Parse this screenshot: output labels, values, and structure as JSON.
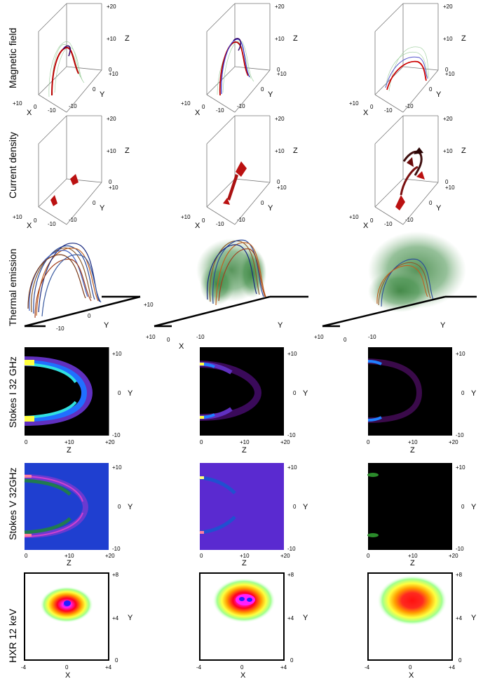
{
  "row_labels": [
    "Magnetic field",
    "Current density",
    "Thermal emission",
    "Stokes I 32 GHz",
    "Stokes V 32GHz",
    "HXR 12 keV"
  ],
  "box3d": {
    "z_ticks": [
      "+20",
      "+10",
      "0"
    ],
    "z_label": "Z",
    "y_ticks": [
      "+10",
      "0",
      "-10"
    ],
    "y_label": "Y",
    "x_ticks": [
      "+10",
      "0",
      "-10"
    ],
    "x_label": "X"
  },
  "thermal": {
    "y_ticks": [
      "+10",
      "0",
      "-10"
    ],
    "y_label": "Y",
    "x_ticks": [
      "+10",
      "0",
      "-10"
    ],
    "x_label": "X"
  },
  "radio": {
    "y_ticks": [
      "+10",
      "0",
      "-10"
    ],
    "y_label": "Y",
    "z_ticks": [
      "0",
      "+10",
      "+20"
    ],
    "z_label": "Z"
  },
  "hxr": {
    "y_ticks": [
      "+8",
      "+4",
      "0"
    ],
    "y_label": "Y",
    "x_ticks": [
      "-4",
      "0",
      "+4"
    ],
    "x_label": "X"
  }
}
